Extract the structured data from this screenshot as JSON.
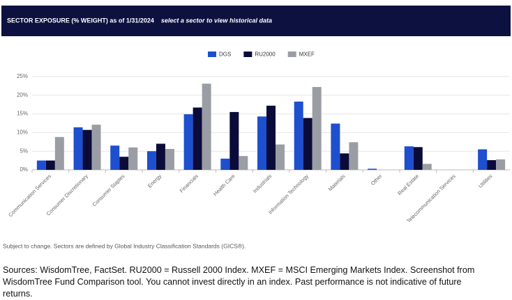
{
  "chart_data": {
    "type": "bar",
    "title": "SECTOR EXPOSURE (% WEIGHT) as of 1/31/2024",
    "subtitle": "select a sector to view historical data",
    "categories": [
      "Communication Services",
      "Consumer Discretionary",
      "Consumer Staples",
      "Energy",
      "Financials",
      "Health Care",
      "Industrials",
      "Information Technology",
      "Materials",
      "Other",
      "Real Estate",
      "Telecommunication Services",
      "Utilities"
    ],
    "series": [
      {
        "name": "DGS",
        "color": "#1d4fcf",
        "values": [
          2.5,
          11.4,
          6.5,
          5.0,
          14.9,
          3.0,
          14.3,
          18.3,
          12.4,
          0.3,
          6.3,
          0,
          5.5
        ]
      },
      {
        "name": "RU2000",
        "color": "#0b0b3a",
        "values": [
          2.5,
          10.7,
          3.5,
          7.0,
          16.7,
          15.5,
          17.2,
          13.9,
          4.4,
          0,
          6.1,
          0,
          2.6
        ]
      },
      {
        "name": "MXEF",
        "color": "#9a9ea4",
        "values": [
          8.8,
          12.1,
          6.0,
          5.6,
          23.1,
          3.7,
          6.8,
          22.2,
          7.4,
          0,
          1.6,
          0,
          2.8
        ]
      }
    ],
    "ylim": [
      0,
      25
    ],
    "yticks": [
      {
        "value": 0,
        "label": "0%"
      },
      {
        "value": 5,
        "label": "5%"
      },
      {
        "value": 10,
        "label": "10%"
      },
      {
        "value": 15,
        "label": "15%"
      },
      {
        "value": 20,
        "label": "20%"
      },
      {
        "value": 25,
        "label": "25%"
      }
    ],
    "grid": true
  },
  "notes": [
    "Subject to change. Sectors are defined by Global Industry Classification Standards (GICS®).",
    "Sources: WisdomTree, FactSet. RU2000 = Russell 2000 Index. MXEF = MSCI Emerging Markets Index. Screenshot from WisdomTree Fund Comparison tool. You cannot invest directly in an index. Past performance is not indicative of future returns."
  ]
}
